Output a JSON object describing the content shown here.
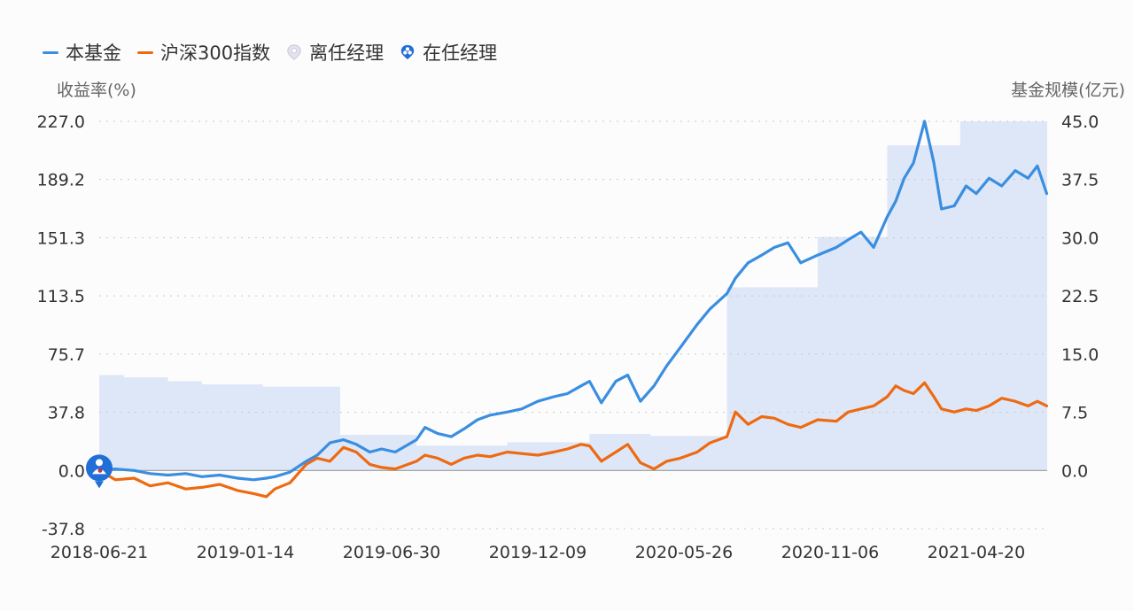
{
  "legend": {
    "items": [
      {
        "label": "本基金",
        "type": "line",
        "color": "#3a8ee0"
      },
      {
        "label": "沪深300指数",
        "type": "line",
        "color": "#ee6a12"
      },
      {
        "label": "离任经理",
        "type": "pin",
        "color": "#c9c8da"
      },
      {
        "label": "在任经理",
        "type": "pin",
        "color": "#1f6fd6"
      }
    ]
  },
  "axes": {
    "left_title": "收益率(%)",
    "right_title": "基金规模(亿元)"
  },
  "colors": {
    "fund": "#3a8ee0",
    "index": "#ee6a12",
    "scale_fill": "#dce6f7",
    "grid": "#c8c8c8",
    "zero_line": "#9a9a9a",
    "manager_pin": "#1f6fd6"
  },
  "chart_data": {
    "type": "line",
    "title": "",
    "xlabel": "",
    "ylabel": "收益率(%)",
    "y2label": "基金规模(亿元)",
    "ylim": [
      -37.8,
      227.0
    ],
    "y2lim": [
      0.0,
      45.0
    ],
    "yticks": [
      "227.0",
      "189.2",
      "151.3",
      "113.5",
      "75.7",
      "37.8",
      "0.0",
      "-37.8"
    ],
    "y2ticks": [
      "45.0",
      "37.5",
      "30.0",
      "22.5",
      "15.0",
      "7.5",
      "0.0"
    ],
    "xticks": [
      "2018-06-21",
      "2019-01-14",
      "2019-06-30",
      "2019-12-09",
      "2020-05-26",
      "2020-11-06",
      "2021-04-20"
    ],
    "grid": true,
    "legend_position": "top-left",
    "x_range": [
      "2018-06-21",
      "2021-07"
    ],
    "series": [
      {
        "name": "本基金",
        "axis": "left",
        "color": "#3a8ee0",
        "points": [
          [
            "2018-06-21",
            0.0
          ],
          [
            "2018-07-10",
            1.0
          ],
          [
            "2018-08-01",
            0.0
          ],
          [
            "2018-08-20",
            -2.0
          ],
          [
            "2018-09-10",
            -3.0
          ],
          [
            "2018-10-01",
            -2.0
          ],
          [
            "2018-10-20",
            -4.0
          ],
          [
            "2018-11-10",
            -3.0
          ],
          [
            "2018-12-01",
            -5.0
          ],
          [
            "2018-12-20",
            -6.0
          ],
          [
            "2019-01-04",
            -5.0
          ],
          [
            "2019-01-14",
            -4.0
          ],
          [
            "2019-02-01",
            -1.0
          ],
          [
            "2019-02-20",
            6.0
          ],
          [
            "2019-03-05",
            10.0
          ],
          [
            "2019-03-20",
            18.0
          ],
          [
            "2019-04-05",
            20.0
          ],
          [
            "2019-04-20",
            17.0
          ],
          [
            "2019-05-06",
            12.0
          ],
          [
            "2019-05-20",
            14.0
          ],
          [
            "2019-06-05",
            12.0
          ],
          [
            "2019-06-30",
            20.0
          ],
          [
            "2019-07-10",
            28.0
          ],
          [
            "2019-07-25",
            24.0
          ],
          [
            "2019-08-10",
            22.0
          ],
          [
            "2019-08-25",
            27.0
          ],
          [
            "2019-09-10",
            33.0
          ],
          [
            "2019-09-25",
            36.0
          ],
          [
            "2019-10-15",
            38.0
          ],
          [
            "2019-11-01",
            40.0
          ],
          [
            "2019-11-20",
            45.0
          ],
          [
            "2019-12-09",
            48.0
          ],
          [
            "2019-12-25",
            50.0
          ],
          [
            "2020-01-10",
            55.0
          ],
          [
            "2020-01-20",
            58.0
          ],
          [
            "2020-02-03",
            44.0
          ],
          [
            "2020-02-20",
            58.0
          ],
          [
            "2020-03-05",
            62.0
          ],
          [
            "2020-03-20",
            45.0
          ],
          [
            "2020-04-05",
            55.0
          ],
          [
            "2020-04-20",
            68.0
          ],
          [
            "2020-05-06",
            80.0
          ],
          [
            "2020-05-26",
            95.0
          ],
          [
            "2020-06-10",
            105.0
          ],
          [
            "2020-06-30",
            115.0
          ],
          [
            "2020-07-10",
            125.0
          ],
          [
            "2020-07-25",
            135.0
          ],
          [
            "2020-08-10",
            140.0
          ],
          [
            "2020-08-25",
            145.0
          ],
          [
            "2020-09-10",
            148.0
          ],
          [
            "2020-09-25",
            135.0
          ],
          [
            "2020-10-15",
            140.0
          ],
          [
            "2020-11-06",
            145.0
          ],
          [
            "2020-11-20",
            150.0
          ],
          [
            "2020-12-05",
            155.0
          ],
          [
            "2020-12-20",
            145.0
          ],
          [
            "2021-01-05",
            165.0
          ],
          [
            "2021-01-15",
            175.0
          ],
          [
            "2021-01-25",
            190.0
          ],
          [
            "2021-02-05",
            200.0
          ],
          [
            "2021-02-18",
            227.0
          ],
          [
            "2021-03-01",
            200.0
          ],
          [
            "2021-03-10",
            170.0
          ],
          [
            "2021-03-25",
            172.0
          ],
          [
            "2021-04-08",
            185.0
          ],
          [
            "2021-04-20",
            180.0
          ],
          [
            "2021-05-05",
            190.0
          ],
          [
            "2021-05-20",
            185.0
          ],
          [
            "2021-06-05",
            195.0
          ],
          [
            "2021-06-20",
            190.0
          ],
          [
            "2021-07-01",
            198.0
          ],
          [
            "2021-07-12",
            180.0
          ]
        ]
      },
      {
        "name": "沪深300指数",
        "axis": "left",
        "color": "#ee6a12",
        "points": [
          [
            "2018-06-21",
            0.0
          ],
          [
            "2018-07-10",
            -6.0
          ],
          [
            "2018-08-01",
            -5.0
          ],
          [
            "2018-08-20",
            -10.0
          ],
          [
            "2018-09-10",
            -8.0
          ],
          [
            "2018-10-01",
            -12.0
          ],
          [
            "2018-10-20",
            -11.0
          ],
          [
            "2018-11-10",
            -9.0
          ],
          [
            "2018-12-01",
            -13.0
          ],
          [
            "2018-12-20",
            -15.0
          ],
          [
            "2019-01-04",
            -17.0
          ],
          [
            "2019-01-14",
            -12.0
          ],
          [
            "2019-02-01",
            -8.0
          ],
          [
            "2019-02-20",
            4.0
          ],
          [
            "2019-03-05",
            8.0
          ],
          [
            "2019-03-20",
            6.0
          ],
          [
            "2019-04-05",
            15.0
          ],
          [
            "2019-04-20",
            12.0
          ],
          [
            "2019-05-06",
            4.0
          ],
          [
            "2019-05-20",
            2.0
          ],
          [
            "2019-06-05",
            1.0
          ],
          [
            "2019-06-30",
            6.0
          ],
          [
            "2019-07-10",
            10.0
          ],
          [
            "2019-07-25",
            8.0
          ],
          [
            "2019-08-10",
            4.0
          ],
          [
            "2019-08-25",
            8.0
          ],
          [
            "2019-09-10",
            10.0
          ],
          [
            "2019-09-25",
            9.0
          ],
          [
            "2019-10-15",
            12.0
          ],
          [
            "2019-11-01",
            11.0
          ],
          [
            "2019-11-20",
            10.0
          ],
          [
            "2019-12-09",
            12.0
          ],
          [
            "2019-12-25",
            14.0
          ],
          [
            "2020-01-10",
            17.0
          ],
          [
            "2020-01-20",
            16.0
          ],
          [
            "2020-02-03",
            6.0
          ],
          [
            "2020-02-20",
            12.0
          ],
          [
            "2020-03-05",
            17.0
          ],
          [
            "2020-03-20",
            5.0
          ],
          [
            "2020-04-05",
            1.0
          ],
          [
            "2020-04-20",
            6.0
          ],
          [
            "2020-05-06",
            8.0
          ],
          [
            "2020-05-26",
            12.0
          ],
          [
            "2020-06-10",
            18.0
          ],
          [
            "2020-06-30",
            22.0
          ],
          [
            "2020-07-10",
            38.0
          ],
          [
            "2020-07-25",
            30.0
          ],
          [
            "2020-08-10",
            35.0
          ],
          [
            "2020-08-25",
            34.0
          ],
          [
            "2020-09-10",
            30.0
          ],
          [
            "2020-09-25",
            28.0
          ],
          [
            "2020-10-15",
            33.0
          ],
          [
            "2020-11-06",
            32.0
          ],
          [
            "2020-11-20",
            38.0
          ],
          [
            "2020-12-05",
            40.0
          ],
          [
            "2020-12-20",
            42.0
          ],
          [
            "2021-01-05",
            48.0
          ],
          [
            "2021-01-15",
            55.0
          ],
          [
            "2021-01-25",
            52.0
          ],
          [
            "2021-02-05",
            50.0
          ],
          [
            "2021-02-18",
            57.0
          ],
          [
            "2021-03-01",
            48.0
          ],
          [
            "2021-03-10",
            40.0
          ],
          [
            "2021-03-25",
            38.0
          ],
          [
            "2021-04-08",
            40.0
          ],
          [
            "2021-04-20",
            39.0
          ],
          [
            "2021-05-05",
            42.0
          ],
          [
            "2021-05-20",
            47.0
          ],
          [
            "2021-06-05",
            45.0
          ],
          [
            "2021-06-20",
            42.0
          ],
          [
            "2021-07-01",
            45.0
          ],
          [
            "2021-07-12",
            42.0
          ]
        ]
      },
      {
        "name": "基金规模",
        "axis": "right",
        "type": "step-area",
        "color": "#dce6f7",
        "steps": [
          [
            "2018-06-21",
            12.3
          ],
          [
            "2018-07-20",
            12.0
          ],
          [
            "2018-09-10",
            11.5
          ],
          [
            "2018-10-20",
            11.1
          ],
          [
            "2018-12-31",
            10.8
          ],
          [
            "2019-04-01",
            4.6
          ],
          [
            "2019-06-30",
            3.2
          ],
          [
            "2019-10-15",
            3.65
          ],
          [
            "2020-01-20",
            4.7
          ],
          [
            "2020-04-01",
            4.45
          ],
          [
            "2020-06-30",
            23.6
          ],
          [
            "2020-10-15",
            30.1
          ],
          [
            "2021-01-05",
            41.9
          ],
          [
            "2021-04-01",
            45.0
          ]
        ]
      }
    ],
    "annotations": [
      {
        "type": "manager-pin",
        "label": "在任经理",
        "x": "2018-06-21",
        "y": 0.0
      }
    ]
  }
}
